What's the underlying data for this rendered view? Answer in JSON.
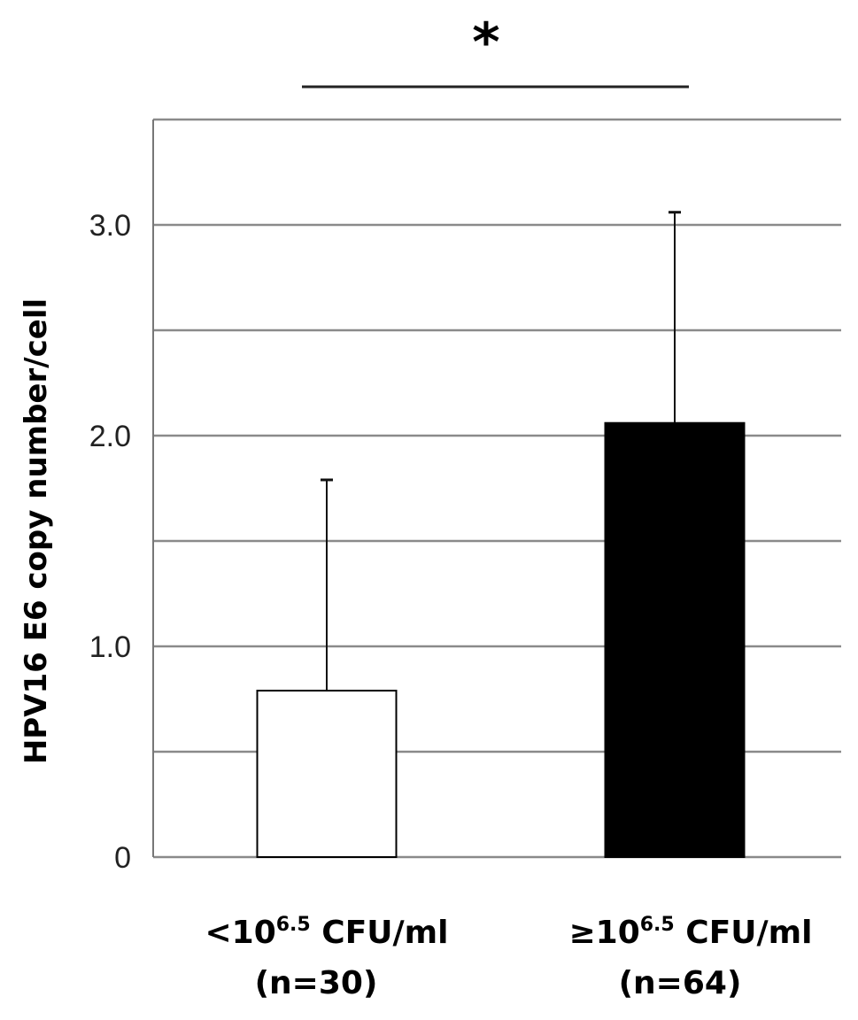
{
  "chart_data": {
    "type": "bar",
    "title": "",
    "ylabel": "HPV16 E6  copy number/cell",
    "xlabel": "",
    "ylim": [
      0,
      3.5
    ],
    "yticks": [
      0,
      1.0,
      2.0,
      3.0
    ],
    "ytick_labels": [
      "0",
      "1.0",
      "2.0",
      "3.0"
    ],
    "grid": true,
    "grid_step": 0.5,
    "categories": [
      {
        "prefix": "<10",
        "sup": "6.5",
        "suffix": " CFU/ml",
        "n": "(n=30)"
      },
      {
        "prefix": "≥10",
        "sup": "6.5",
        "suffix": " CFU/ml",
        "n": "(n=64)"
      }
    ],
    "values": [
      0.79,
      2.06
    ],
    "error_upper": [
      1.79,
      3.06
    ],
    "bar_colors": [
      "#ffffff",
      "#000000"
    ],
    "significance": {
      "between": [
        0,
        1
      ],
      "label": "*"
    }
  }
}
